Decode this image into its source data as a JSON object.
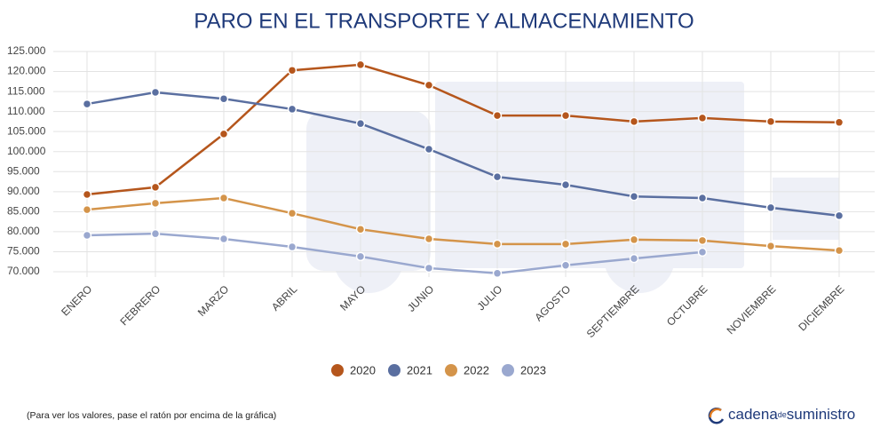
{
  "chart_data": {
    "type": "line",
    "title": "PARO EN EL TRANSPORTE Y ALMACENAMIENTO",
    "categories": [
      "ENERO",
      "FEBRERO",
      "MARZO",
      "ABRIL",
      "MAYO",
      "JUNIO",
      "JULIO",
      "AGOSTO",
      "SEPTIEMBRE",
      "OCTUBRE",
      "NOVIEMBRE",
      "DICIEMBRE"
    ],
    "series": [
      {
        "name": "2020",
        "color": "#b5561c",
        "values": [
          89300,
          91100,
          104400,
          120300,
          121700,
          116600,
          109000,
          109000,
          107500,
          108400,
          107500,
          107300
        ]
      },
      {
        "name": "2021",
        "color": "#5a6fa0",
        "values": [
          111900,
          114800,
          113200,
          110600,
          107000,
          100600,
          93700,
          91700,
          88800,
          88400,
          86000,
          84000
        ]
      },
      {
        "name": "2022",
        "color": "#d4944a",
        "values": [
          85500,
          87100,
          88400,
          84600,
          80600,
          78200,
          76900,
          76900,
          78000,
          77800,
          76400,
          75300
        ]
      },
      {
        "name": "2023",
        "color": "#9aa8cf",
        "values": [
          79100,
          79500,
          78200,
          76200,
          73800,
          70900,
          69600,
          71600,
          73300,
          74900,
          null,
          null
        ]
      }
    ],
    "ylim": [
      70000,
      125000
    ],
    "yticks": [
      {
        "value": 70000,
        "label": "70.000"
      },
      {
        "value": 75000,
        "label": "75.000"
      },
      {
        "value": 80000,
        "label": "80.000"
      },
      {
        "value": 85000,
        "label": "85.000"
      },
      {
        "value": 90000,
        "label": "90.000"
      },
      {
        "value": 95000,
        "label": "95.000"
      },
      {
        "value": 100000,
        "label": "100.000"
      },
      {
        "value": 105000,
        "label": "105.000"
      },
      {
        "value": 110000,
        "label": "110.000"
      },
      {
        "value": 115000,
        "label": "115.000"
      },
      {
        "value": 120000,
        "label": "120.000"
      },
      {
        "value": 125000,
        "label": "125.000"
      }
    ],
    "grid": true,
    "legend": "bottom",
    "note": "(Para ver los valores, pase el ratón por encima de la gráfica)"
  },
  "logo": {
    "part1": "cadena",
    "part2": "de",
    "part3": "suministro"
  }
}
